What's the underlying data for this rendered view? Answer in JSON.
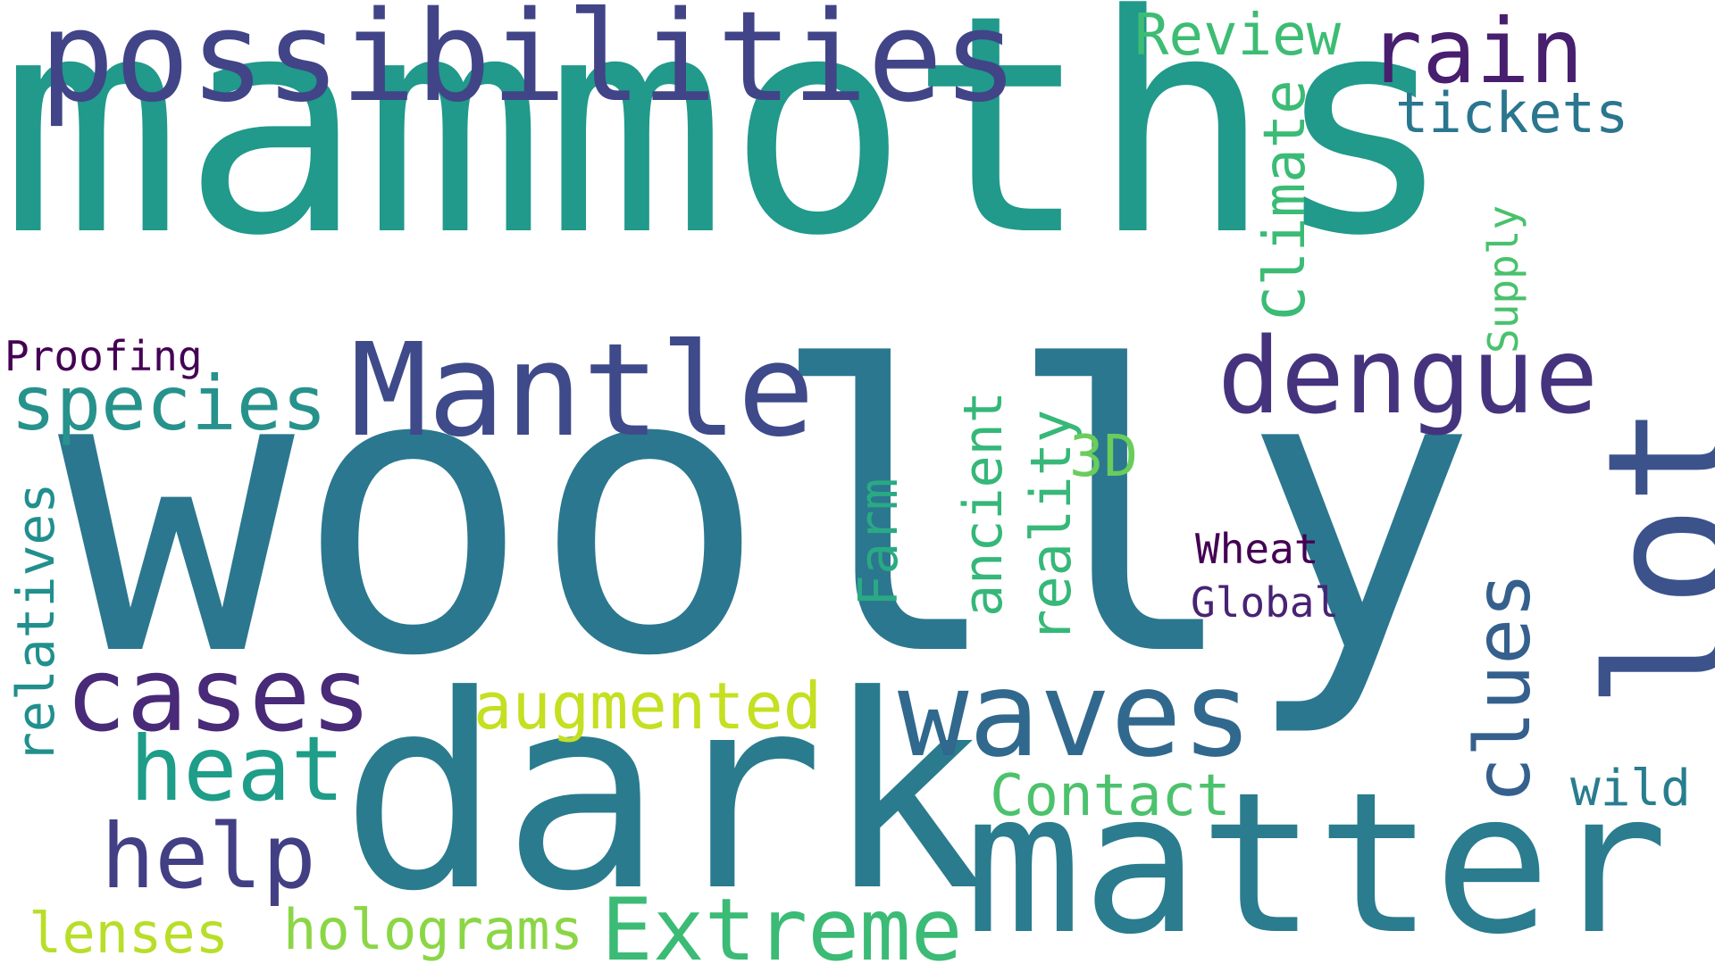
{
  "words": [
    {
      "text": "mammoths",
      "color": "#21998b",
      "rotated": false
    },
    {
      "text": "woolly",
      "color": "#2b778f",
      "rotated": false
    },
    {
      "text": "dark",
      "color": "#2a7b8e",
      "rotated": false
    },
    {
      "text": "matter",
      "color": "#2a7c8e",
      "rotated": false
    },
    {
      "text": "possibilities",
      "color": "#414487",
      "rotated": false
    },
    {
      "text": "lot",
      "color": "#3b528b",
      "rotated": true
    },
    {
      "text": "Mantle",
      "color": "#3e4a89",
      "rotated": false
    },
    {
      "text": "waves",
      "color": "#31688e",
      "rotated": false
    },
    {
      "text": "dengue",
      "color": "#46337e",
      "rotated": false
    },
    {
      "text": "cases",
      "color": "#482a78",
      "rotated": false
    },
    {
      "text": "species",
      "color": "#27928c",
      "rotated": false
    },
    {
      "text": "rain",
      "color": "#481e6f",
      "rotated": false
    },
    {
      "text": "Extreme",
      "color": "#3bbb75",
      "rotated": false
    },
    {
      "text": "heat",
      "color": "#1e9d89",
      "rotated": false
    },
    {
      "text": "help",
      "color": "#423f85",
      "rotated": false
    },
    {
      "text": "clues",
      "color": "#35608d",
      "rotated": true
    },
    {
      "text": "augmented",
      "color": "#c5df21",
      "rotated": false
    },
    {
      "text": "Contact",
      "color": "#4cc26c",
      "rotated": false
    },
    {
      "text": "Review",
      "color": "#3dbc74",
      "rotated": false
    },
    {
      "text": "tickets",
      "color": "#2a768e",
      "rotated": false
    },
    {
      "text": "Climate",
      "color": "#3bbb75",
      "rotated": true
    },
    {
      "text": "holograms",
      "color": "#8bd646",
      "rotated": false
    },
    {
      "text": "lenses",
      "color": "#b8de29",
      "rotated": false
    },
    {
      "text": "reality",
      "color": "#37b878",
      "rotated": true
    },
    {
      "text": "ancient",
      "color": "#35b779",
      "rotated": true
    },
    {
      "text": "Farm",
      "color": "#2aa984",
      "rotated": true
    },
    {
      "text": "3D",
      "color": "#69cd5b",
      "rotated": false
    },
    {
      "text": "relatives",
      "color": "#218f8d",
      "rotated": true
    },
    {
      "text": "wild",
      "color": "#287d8e",
      "rotated": false
    },
    {
      "text": "Supply",
      "color": "#4ac16d",
      "rotated": true
    },
    {
      "text": "Wheat",
      "color": "#440154",
      "rotated": false
    },
    {
      "text": "Global",
      "color": "#482374",
      "rotated": false
    },
    {
      "text": "Proofing",
      "color": "#440154",
      "rotated": false
    }
  ]
}
